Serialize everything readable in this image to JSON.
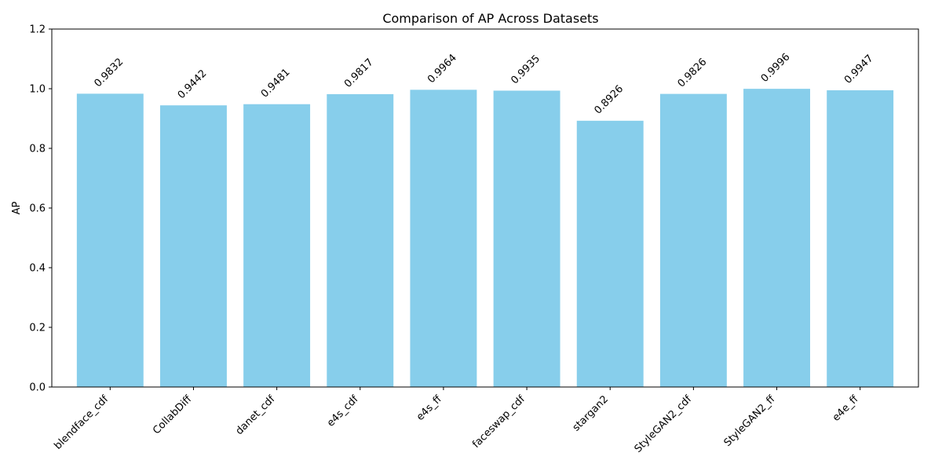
{
  "chart_data": {
    "type": "bar",
    "title": "Comparison of AP Across Datasets",
    "xlabel": "",
    "ylabel": "AP",
    "ylim": [
      0,
      1.2
    ],
    "yticks": [
      0.0,
      0.2,
      0.4,
      0.6,
      0.8,
      1.0,
      1.2
    ],
    "ytick_labels": [
      "0.0",
      "0.2",
      "0.4",
      "0.6",
      "0.8",
      "1.0",
      "1.2"
    ],
    "grid": false,
    "bar_color": "#87CEEB",
    "categories": [
      "blendface_cdf",
      "CollabDiff",
      "danet_cdf",
      "e4s_cdf",
      "e4s_ff",
      "faceswap_cdf",
      "stargan2",
      "StyleGAN2_cdf",
      "StyleGAN2_ff",
      "e4e_ff"
    ],
    "values": [
      0.9832,
      0.9442,
      0.9481,
      0.9817,
      0.9964,
      0.9935,
      0.8926,
      0.9826,
      0.9996,
      0.9947
    ],
    "value_labels": [
      "0.9832",
      "0.9442",
      "0.9481",
      "0.9817",
      "0.9964",
      "0.9935",
      "0.8926",
      "0.9826",
      "0.9996",
      "0.9947"
    ]
  }
}
